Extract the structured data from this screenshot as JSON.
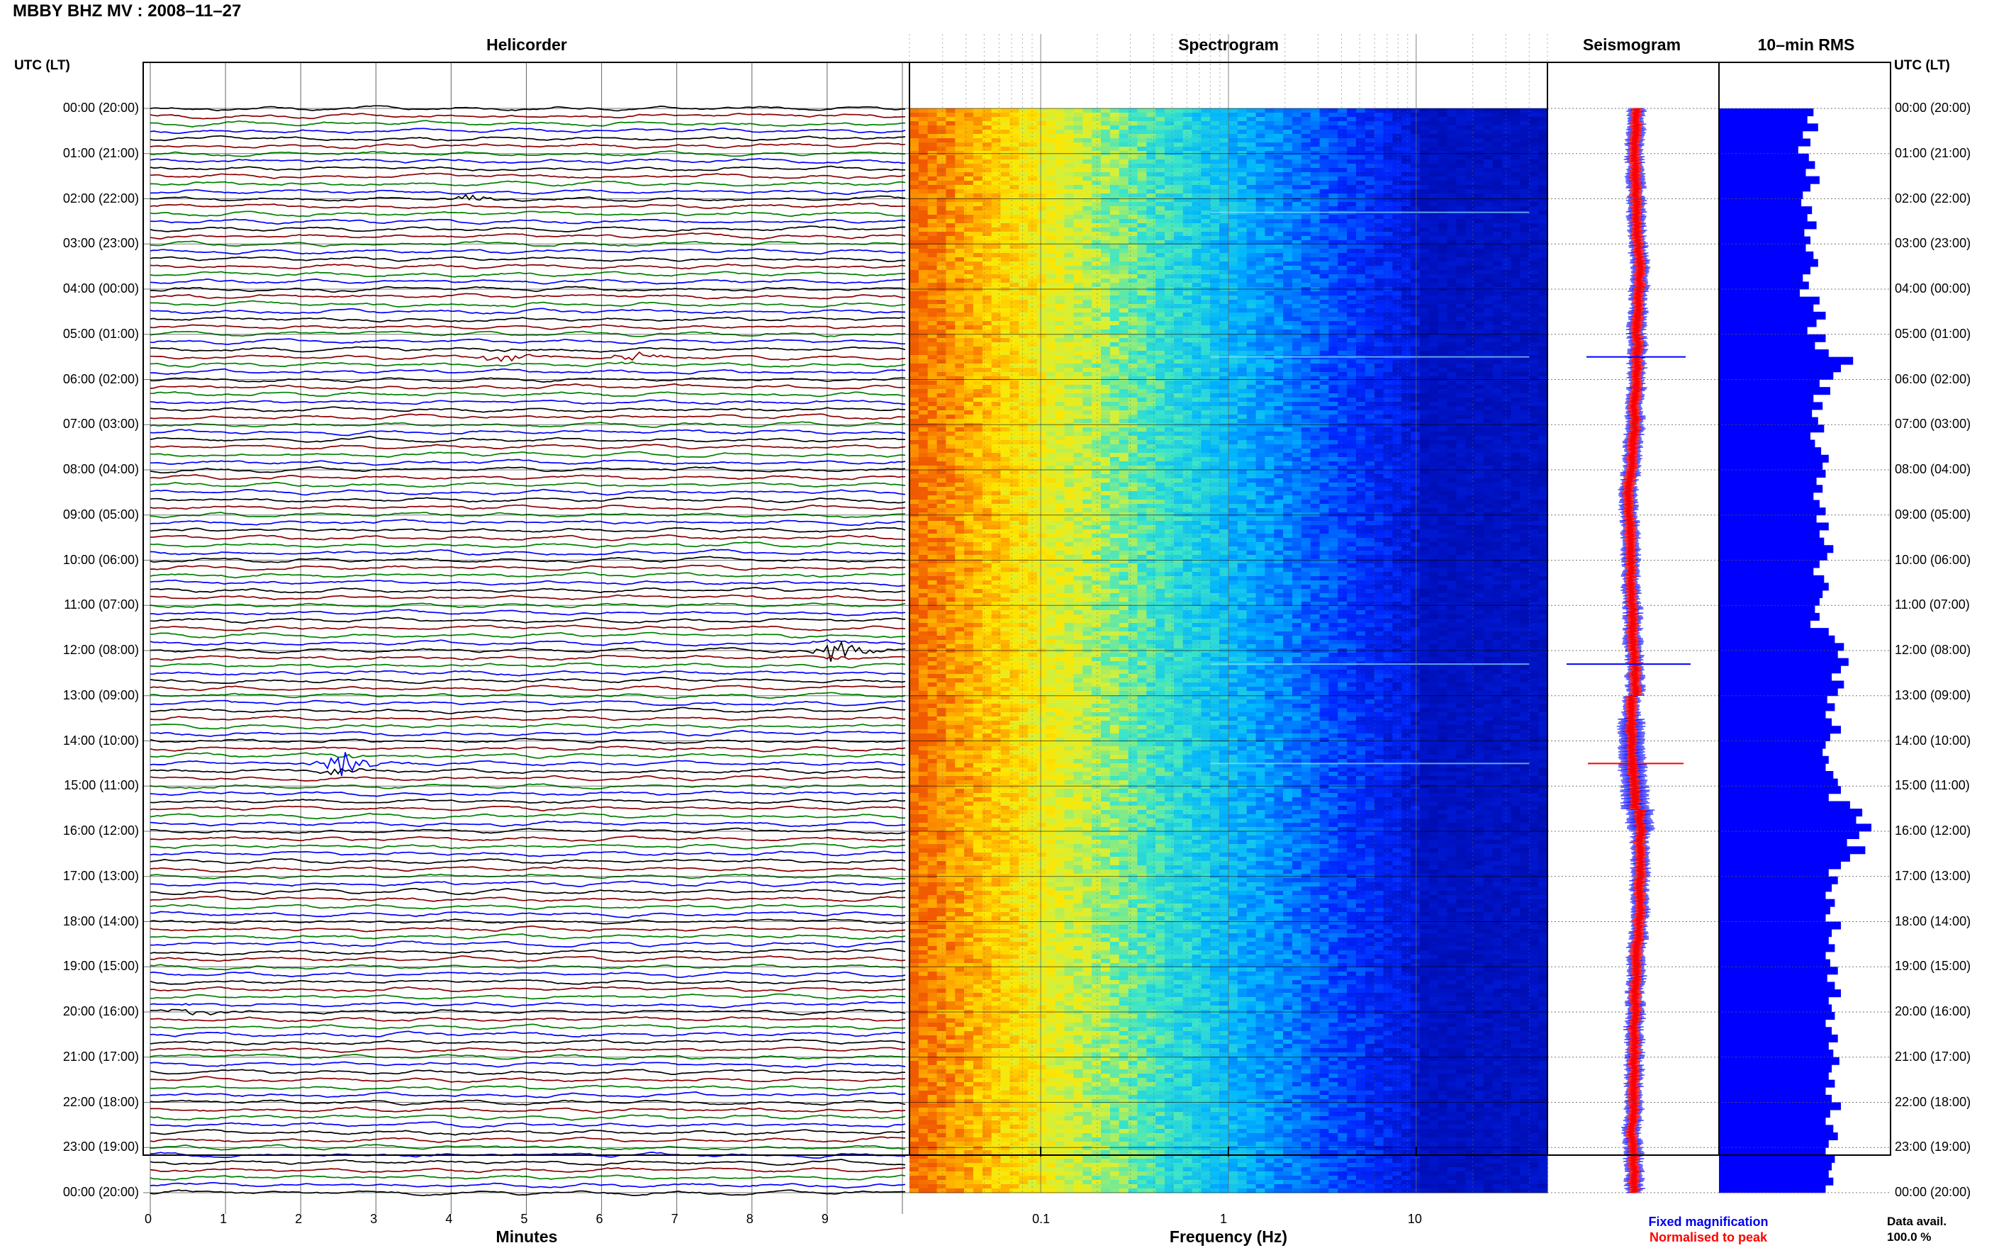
{
  "header": {
    "station_title": "MBBY BHZ MV : 2008–11–27",
    "utc_label_left": "UTC (LT)",
    "utc_label_right": "UTC (LT)"
  },
  "panels": {
    "helicorder_title": "Helicorder",
    "spectrogram_title": "Spectrogram",
    "seismogram_title": "Seismogram",
    "rms_title": "10–min RMS"
  },
  "footer": {
    "minutes_label": "Minutes",
    "frequency_label": "Frequency (Hz)",
    "legend_fixed": "Fixed magnification",
    "legend_normalised": "Normalised to peak",
    "data_avail_label": "Data avail.",
    "data_avail_value": "100.0 %"
  },
  "colors": {
    "legend_fixed": "#0000ee",
    "legend_normalised": "#ff0000",
    "trace_cycle": [
      "#000000",
      "#8b0000",
      "#008000",
      "#0000ff"
    ],
    "rms_bar": "#0000ff"
  },
  "chart_data": [
    {
      "type": "line",
      "title": "Helicorder",
      "xlabel": "Minutes",
      "ylabel": "UTC (LT)",
      "x_ticks": [
        "0",
        "1",
        "2",
        "3",
        "4",
        "5",
        "6",
        "7",
        "8",
        "9"
      ],
      "xlim": [
        0,
        10
      ],
      "traces_per_hour": 6,
      "hours": 24,
      "time_labels": [
        "00:00 (20:00)",
        "01:00 (21:00)",
        "02:00 (22:00)",
        "03:00 (23:00)",
        "04:00 (00:00)",
        "05:00 (01:00)",
        "06:00 (02:00)",
        "07:00 (03:00)",
        "08:00 (04:00)",
        "09:00 (05:00)",
        "10:00 (06:00)",
        "11:00 (07:00)",
        "12:00 (08:00)",
        "13:00 (09:00)",
        "14:00 (10:00)",
        "15:00 (11:00)",
        "16:00 (12:00)",
        "17:00 (13:00)",
        "18:00 (14:00)",
        "19:00 (15:00)",
        "20:00 (16:00)",
        "21:00 (17:00)",
        "22:00 (18:00)",
        "23:00 (19:00)",
        "00:00 (20:00)"
      ],
      "events": [
        {
          "hour": 2,
          "minute": 4.1,
          "amplitude": 0.6
        },
        {
          "hour": 5.5,
          "minute": 4.6,
          "amplitude": 1.4
        },
        {
          "hour": 5.5,
          "minute": 6.3,
          "amplitude": 0.9
        },
        {
          "hour": 12,
          "minute": 9.0,
          "amplitude": 2.2
        },
        {
          "hour": 14.5,
          "minute": 2.4,
          "amplitude": 3.0
        },
        {
          "hour": 20,
          "minute": 0.45,
          "amplitude": 0.6
        }
      ]
    },
    {
      "type": "heatmap",
      "title": "Spectrogram",
      "xlabel": "Frequency (Hz)",
      "x_scale": "log",
      "xlim": [
        0.02,
        50
      ],
      "x_ticks": [
        "0.1",
        "1",
        "10"
      ]
    },
    {
      "type": "line",
      "title": "Seismogram",
      "legend": [
        "Fixed magnification",
        "Normalised to peak"
      ],
      "spikes_hours": [
        5.5,
        12.3,
        14.5
      ]
    },
    {
      "type": "bar",
      "title": "10–min RMS",
      "orientation": "horizontal",
      "values_relative": [
        0.62,
        0.58,
        0.65,
        0.55,
        0.6,
        0.52,
        0.59,
        0.63,
        0.57,
        0.66,
        0.6,
        0.55,
        0.54,
        0.61,
        0.58,
        0.64,
        0.56,
        0.6,
        0.57,
        0.62,
        0.65,
        0.6,
        0.55,
        0.59,
        0.53,
        0.66,
        0.62,
        0.7,
        0.64,
        0.58,
        0.7,
        0.63,
        0.72,
        0.88,
        0.8,
        0.75,
        0.66,
        0.73,
        0.62,
        0.68,
        0.61,
        0.65,
        0.69,
        0.6,
        0.63,
        0.67,
        0.72,
        0.68,
        0.7,
        0.64,
        0.68,
        0.62,
        0.66,
        0.7,
        0.64,
        0.72,
        0.66,
        0.69,
        0.75,
        0.71,
        0.66,
        0.62,
        0.69,
        0.72,
        0.68,
        0.66,
        0.63,
        0.66,
        0.6,
        0.72,
        0.76,
        0.82,
        0.78,
        0.85,
        0.8,
        0.74,
        0.82,
        0.78,
        0.71,
        0.76,
        0.7,
        0.74,
        0.8,
        0.73,
        0.7,
        0.68,
        0.72,
        0.7,
        0.75,
        0.78,
        0.8,
        0.72,
        0.86,
        0.94,
        0.9,
        1.0,
        0.92,
        0.84,
        0.96,
        0.86,
        0.8,
        0.72,
        0.78,
        0.74,
        0.7,
        0.76,
        0.73,
        0.7,
        0.8,
        0.74,
        0.72,
        0.76,
        0.7,
        0.73,
        0.78,
        0.71,
        0.76,
        0.8,
        0.72,
        0.74,
        0.76,
        0.7,
        0.74,
        0.78,
        0.72,
        0.75,
        0.79,
        0.74,
        0.72,
        0.76,
        0.7,
        0.74,
        0.8,
        0.73,
        0.7,
        0.75,
        0.78,
        0.72,
        0.7,
        0.76,
        0.74,
        0.72,
        0.75,
        0.7
      ]
    }
  ]
}
